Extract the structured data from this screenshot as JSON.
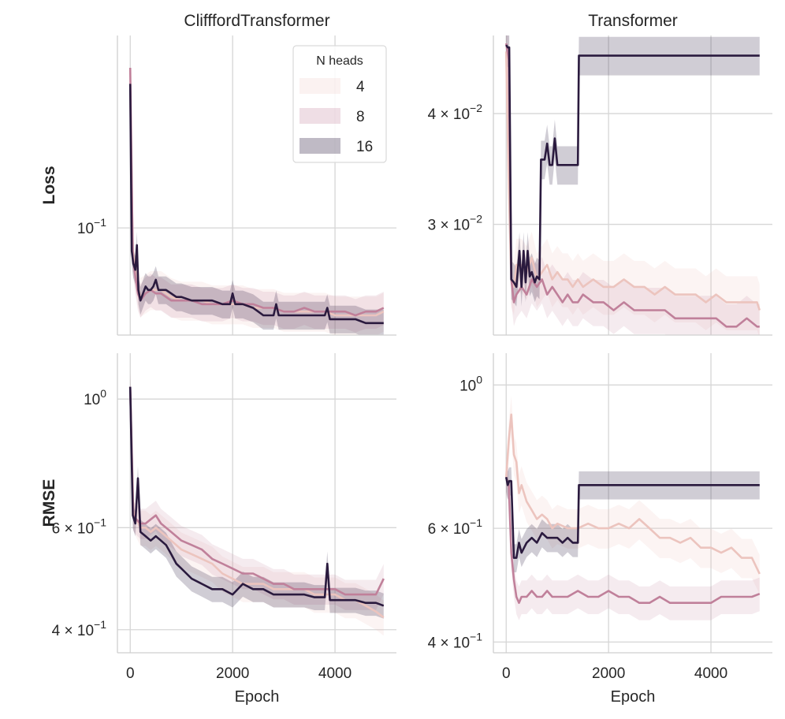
{
  "legend": {
    "title": "N heads",
    "entries": [
      {
        "label": "4",
        "color": "#ecc4be"
      },
      {
        "label": "8",
        "color": "#c0809a"
      },
      {
        "label": "16",
        "color": "#2a1a3e"
      }
    ],
    "placement": "upper-right of top-left panel"
  },
  "chart_data": [
    {
      "type": "line",
      "panel": "top-left",
      "title": "ClifffordTransformer",
      "row_label": "Loss",
      "xlabel": "",
      "ylabel": "Loss",
      "yscale": "log",
      "xlim": [
        -250,
        5200
      ],
      "ylim": [
        0.068,
        0.2
      ],
      "grid": true,
      "x_ticks": [
        0,
        2000,
        4000
      ],
      "x_tick_labels": [
        "",
        "",
        ""
      ],
      "y_ticks": [
        {
          "value": 0.1,
          "base": "10",
          "exp": "−1",
          "mant": ""
        }
      ],
      "series": [
        {
          "name": "4",
          "x": [
            0,
            50,
            100,
            150,
            200,
            300,
            400,
            500,
            600,
            700,
            800,
            1000,
            1200,
            1400,
            1600,
            1800,
            2000,
            2200,
            2400,
            2600,
            2800,
            3000,
            3200,
            3400,
            3600,
            3800,
            4000,
            4200,
            4400,
            4600,
            4800,
            4950
          ],
          "y": [
            0.165,
            0.092,
            0.086,
            0.081,
            0.078,
            0.079,
            0.08,
            0.08,
            0.08,
            0.079,
            0.078,
            0.077,
            0.077,
            0.077,
            0.076,
            0.076,
            0.076,
            0.076,
            0.075,
            0.075,
            0.075,
            0.074,
            0.074,
            0.074,
            0.074,
            0.074,
            0.073,
            0.073,
            0.073,
            0.073,
            0.073,
            0.074
          ]
        },
        {
          "name": "8",
          "x": [
            0,
            50,
            100,
            150,
            200,
            300,
            400,
            500,
            600,
            700,
            800,
            1000,
            1200,
            1400,
            1600,
            1800,
            2000,
            2200,
            2400,
            2600,
            2800,
            3000,
            3200,
            3400,
            3600,
            3800,
            4000,
            4200,
            4400,
            4600,
            4800,
            4950
          ],
          "y": [
            0.178,
            0.09,
            0.084,
            0.079,
            0.077,
            0.079,
            0.08,
            0.079,
            0.079,
            0.078,
            0.077,
            0.077,
            0.077,
            0.076,
            0.076,
            0.076,
            0.077,
            0.076,
            0.076,
            0.075,
            0.075,
            0.074,
            0.074,
            0.075,
            0.074,
            0.074,
            0.074,
            0.074,
            0.073,
            0.074,
            0.074,
            0.075
          ]
        },
        {
          "name": "16",
          "x": [
            0,
            30,
            60,
            100,
            130,
            160,
            200,
            250,
            300,
            350,
            400,
            450,
            500,
            550,
            600,
            700,
            800,
            900,
            1000,
            1200,
            1400,
            1600,
            1800,
            1950,
            2000,
            2050,
            2200,
            2400,
            2500,
            2600,
            2800,
            2850,
            2900,
            3000,
            3200,
            3400,
            3600,
            3800,
            3850,
            3900,
            4000,
            4200,
            4400,
            4600,
            4800,
            4950
          ],
          "y": [
            0.168,
            0.092,
            0.088,
            0.086,
            0.094,
            0.08,
            0.077,
            0.079,
            0.081,
            0.08,
            0.08,
            0.081,
            0.083,
            0.08,
            0.08,
            0.08,
            0.079,
            0.078,
            0.078,
            0.077,
            0.077,
            0.077,
            0.076,
            0.076,
            0.079,
            0.076,
            0.076,
            0.075,
            0.074,
            0.073,
            0.073,
            0.076,
            0.073,
            0.073,
            0.073,
            0.073,
            0.073,
            0.073,
            0.075,
            0.072,
            0.072,
            0.072,
            0.072,
            0.071,
            0.071,
            0.071
          ]
        }
      ]
    },
    {
      "type": "line",
      "panel": "top-right",
      "title": "Transformer",
      "row_label": "",
      "xlabel": "",
      "ylabel": "",
      "yscale": "log",
      "xlim": [
        -250,
        5200
      ],
      "ylim": [
        0.0225,
        0.049
      ],
      "grid": true,
      "x_ticks": [
        0,
        2000,
        4000
      ],
      "x_tick_labels": [
        "",
        "",
        ""
      ],
      "y_ticks": [
        {
          "value": 0.04,
          "mant": "4",
          "base": "10",
          "exp": "−2"
        },
        {
          "value": 0.03,
          "mant": "3",
          "base": "10",
          "exp": "−2"
        }
      ],
      "series": [
        {
          "name": "4",
          "x": [
            0,
            50,
            100,
            150,
            200,
            300,
            400,
            500,
            600,
            700,
            800,
            900,
            1000,
            1100,
            1200,
            1300,
            1400,
            1500,
            1700,
            1900,
            2100,
            2300,
            2500,
            2700,
            2900,
            3100,
            3300,
            3500,
            3700,
            3900,
            4100,
            4300,
            4500,
            4700,
            4900,
            4950
          ],
          "y": [
            0.047,
            0.033,
            0.026,
            0.0255,
            0.027,
            0.027,
            0.0265,
            0.0275,
            0.026,
            0.0265,
            0.027,
            0.026,
            0.0265,
            0.026,
            0.026,
            0.0255,
            0.026,
            0.0255,
            0.026,
            0.0255,
            0.0255,
            0.026,
            0.0255,
            0.0255,
            0.025,
            0.0255,
            0.025,
            0.025,
            0.025,
            0.0245,
            0.025,
            0.0245,
            0.0245,
            0.0245,
            0.0245,
            0.024
          ]
        },
        {
          "name": "8",
          "x": [
            0,
            50,
            100,
            150,
            200,
            300,
            400,
            500,
            600,
            700,
            800,
            900,
            1000,
            1100,
            1200,
            1300,
            1400,
            1500,
            1700,
            1900,
            2100,
            2300,
            2500,
            2700,
            2900,
            3100,
            3300,
            3500,
            3700,
            3900,
            4100,
            4300,
            4500,
            4700,
            4900,
            4950
          ],
          "y": [
            0.048,
            0.046,
            0.026,
            0.0245,
            0.025,
            0.0255,
            0.025,
            0.026,
            0.0255,
            0.026,
            0.025,
            0.0255,
            0.025,
            0.0245,
            0.025,
            0.0245,
            0.0245,
            0.025,
            0.0245,
            0.0245,
            0.024,
            0.0245,
            0.024,
            0.024,
            0.024,
            0.024,
            0.0235,
            0.0235,
            0.0235,
            0.0235,
            0.0235,
            0.023,
            0.023,
            0.0235,
            0.023,
            0.023
          ]
        },
        {
          "name": "16",
          "x": [
            0,
            30,
            60,
            100,
            150,
            200,
            260,
            300,
            340,
            380,
            420,
            460,
            500,
            560,
            600,
            650,
            680,
            700,
            750,
            800,
            850,
            900,
            950,
            1000,
            1050,
            1100,
            1200,
            1300,
            1400,
            1420,
            1500,
            2000,
            3000,
            4000,
            4950
          ],
          "y": [
            0.0478,
            0.0475,
            0.0475,
            0.026,
            0.0258,
            0.0255,
            0.028,
            0.0255,
            0.028,
            0.0258,
            0.028,
            0.0262,
            0.0265,
            0.0258,
            0.0262,
            0.026,
            0.0355,
            0.0355,
            0.0355,
            0.037,
            0.035,
            0.035,
            0.0375,
            0.035,
            0.035,
            0.035,
            0.035,
            0.035,
            0.035,
            0.0465,
            0.0465,
            0.0465,
            0.0465,
            0.0465,
            0.0465
          ]
        }
      ]
    },
    {
      "type": "line",
      "panel": "bottom-left",
      "title": "",
      "row_label": "RMSE",
      "xlabel": "Epoch",
      "ylabel": "RMSE",
      "yscale": "log",
      "xlim": [
        -250,
        5200
      ],
      "ylim": [
        0.365,
        1.2
      ],
      "grid": true,
      "x_ticks": [
        0,
        2000,
        4000
      ],
      "x_tick_labels": [
        "0",
        "2000",
        "4000"
      ],
      "y_ticks": [
        {
          "value": 1.0,
          "mant": "",
          "base": "10",
          "exp": "0"
        },
        {
          "value": 0.6,
          "mant": "6",
          "base": "10",
          "exp": "−1"
        },
        {
          "value": 0.4,
          "mant": "4",
          "base": "10",
          "exp": "−1"
        }
      ],
      "series": [
        {
          "name": "4",
          "x": [
            0,
            60,
            120,
            200,
            300,
            400,
            500,
            600,
            800,
            1000,
            1200,
            1400,
            1600,
            1800,
            2000,
            2200,
            2400,
            2600,
            2800,
            3000,
            3200,
            3400,
            3600,
            3800,
            4000,
            4200,
            4400,
            4600,
            4800,
            4950
          ],
          "y": [
            1.05,
            0.64,
            0.62,
            0.6,
            0.6,
            0.59,
            0.6,
            0.59,
            0.57,
            0.55,
            0.54,
            0.53,
            0.52,
            0.5,
            0.49,
            0.48,
            0.48,
            0.48,
            0.47,
            0.47,
            0.47,
            0.47,
            0.46,
            0.46,
            0.46,
            0.45,
            0.45,
            0.44,
            0.43,
            0.42
          ]
        },
        {
          "name": "8",
          "x": [
            0,
            60,
            120,
            200,
            300,
            400,
            500,
            600,
            800,
            1000,
            1200,
            1400,
            1600,
            1800,
            2000,
            2200,
            2400,
            2600,
            2800,
            3000,
            3200,
            3400,
            3600,
            3800,
            4000,
            4200,
            4400,
            4600,
            4800,
            4950
          ],
          "y": [
            1.05,
            0.63,
            0.62,
            0.61,
            0.61,
            0.62,
            0.63,
            0.61,
            0.59,
            0.57,
            0.56,
            0.55,
            0.53,
            0.52,
            0.51,
            0.5,
            0.5,
            0.49,
            0.48,
            0.48,
            0.47,
            0.47,
            0.47,
            0.47,
            0.47,
            0.46,
            0.46,
            0.46,
            0.46,
            0.49
          ]
        },
        {
          "name": "16",
          "x": [
            0,
            50,
            100,
            150,
            200,
            300,
            400,
            500,
            600,
            700,
            800,
            900,
            1000,
            1200,
            1400,
            1600,
            1800,
            2000,
            2200,
            2400,
            2600,
            2800,
            3000,
            3200,
            3400,
            3600,
            3800,
            3850,
            3900,
            4000,
            4200,
            4400,
            4600,
            4800,
            4950
          ],
          "y": [
            1.05,
            0.63,
            0.61,
            0.73,
            0.59,
            0.58,
            0.57,
            0.58,
            0.57,
            0.56,
            0.54,
            0.52,
            0.51,
            0.49,
            0.48,
            0.47,
            0.47,
            0.46,
            0.48,
            0.47,
            0.47,
            0.46,
            0.46,
            0.46,
            0.46,
            0.455,
            0.455,
            0.52,
            0.45,
            0.45,
            0.45,
            0.45,
            0.445,
            0.445,
            0.44
          ]
        }
      ]
    },
    {
      "type": "line",
      "panel": "bottom-right",
      "title": "",
      "row_label": "",
      "xlabel": "Epoch",
      "ylabel": "",
      "yscale": "log",
      "xlim": [
        -250,
        5200
      ],
      "ylim": [
        0.385,
        1.12
      ],
      "grid": true,
      "x_ticks": [
        0,
        2000,
        4000
      ],
      "x_tick_labels": [
        "0",
        "2000",
        "4000"
      ],
      "y_ticks": [
        {
          "value": 1.0,
          "mant": "",
          "base": "10",
          "exp": "0"
        },
        {
          "value": 0.6,
          "mant": "6",
          "base": "10",
          "exp": "−1"
        },
        {
          "value": 0.4,
          "mant": "4",
          "base": "10",
          "exp": "−1"
        }
      ],
      "series": [
        {
          "name": "4",
          "x": [
            0,
            50,
            100,
            150,
            200,
            250,
            300,
            400,
            500,
            600,
            700,
            800,
            900,
            1000,
            1200,
            1400,
            1600,
            1800,
            2000,
            2200,
            2400,
            2600,
            2800,
            3000,
            3200,
            3400,
            3600,
            3800,
            4000,
            4200,
            4400,
            4600,
            4800,
            4950
          ],
          "y": [
            0.72,
            0.82,
            0.9,
            0.78,
            0.76,
            0.68,
            0.7,
            0.66,
            0.64,
            0.62,
            0.63,
            0.62,
            0.6,
            0.61,
            0.6,
            0.6,
            0.61,
            0.6,
            0.6,
            0.61,
            0.6,
            0.62,
            0.6,
            0.58,
            0.58,
            0.57,
            0.58,
            0.56,
            0.56,
            0.55,
            0.56,
            0.54,
            0.54,
            0.51
          ]
        },
        {
          "name": "8",
          "x": [
            0,
            50,
            100,
            150,
            200,
            250,
            300,
            400,
            500,
            600,
            700,
            800,
            900,
            1000,
            1200,
            1400,
            1600,
            1800,
            2000,
            2200,
            2400,
            2600,
            2800,
            3000,
            3200,
            3400,
            3600,
            3800,
            4000,
            4200,
            4400,
            4600,
            4800,
            4950
          ],
          "y": [
            0.72,
            0.7,
            0.55,
            0.5,
            0.47,
            0.46,
            0.47,
            0.47,
            0.48,
            0.47,
            0.47,
            0.48,
            0.47,
            0.47,
            0.47,
            0.48,
            0.47,
            0.47,
            0.48,
            0.47,
            0.47,
            0.46,
            0.46,
            0.47,
            0.46,
            0.46,
            0.46,
            0.46,
            0.46,
            0.47,
            0.47,
            0.47,
            0.47,
            0.475
          ]
        },
        {
          "name": "16",
          "x": [
            0,
            30,
            60,
            100,
            150,
            200,
            250,
            300,
            350,
            400,
            500,
            600,
            700,
            800,
            900,
            1000,
            1100,
            1200,
            1300,
            1400,
            1420,
            1500,
            2000,
            3000,
            4000,
            4950
          ],
          "y": [
            0.72,
            0.7,
            0.71,
            0.71,
            0.54,
            0.54,
            0.57,
            0.55,
            0.56,
            0.57,
            0.58,
            0.57,
            0.59,
            0.58,
            0.58,
            0.58,
            0.57,
            0.58,
            0.57,
            0.57,
            0.7,
            0.7,
            0.7,
            0.7,
            0.7,
            0.7
          ]
        }
      ]
    }
  ]
}
